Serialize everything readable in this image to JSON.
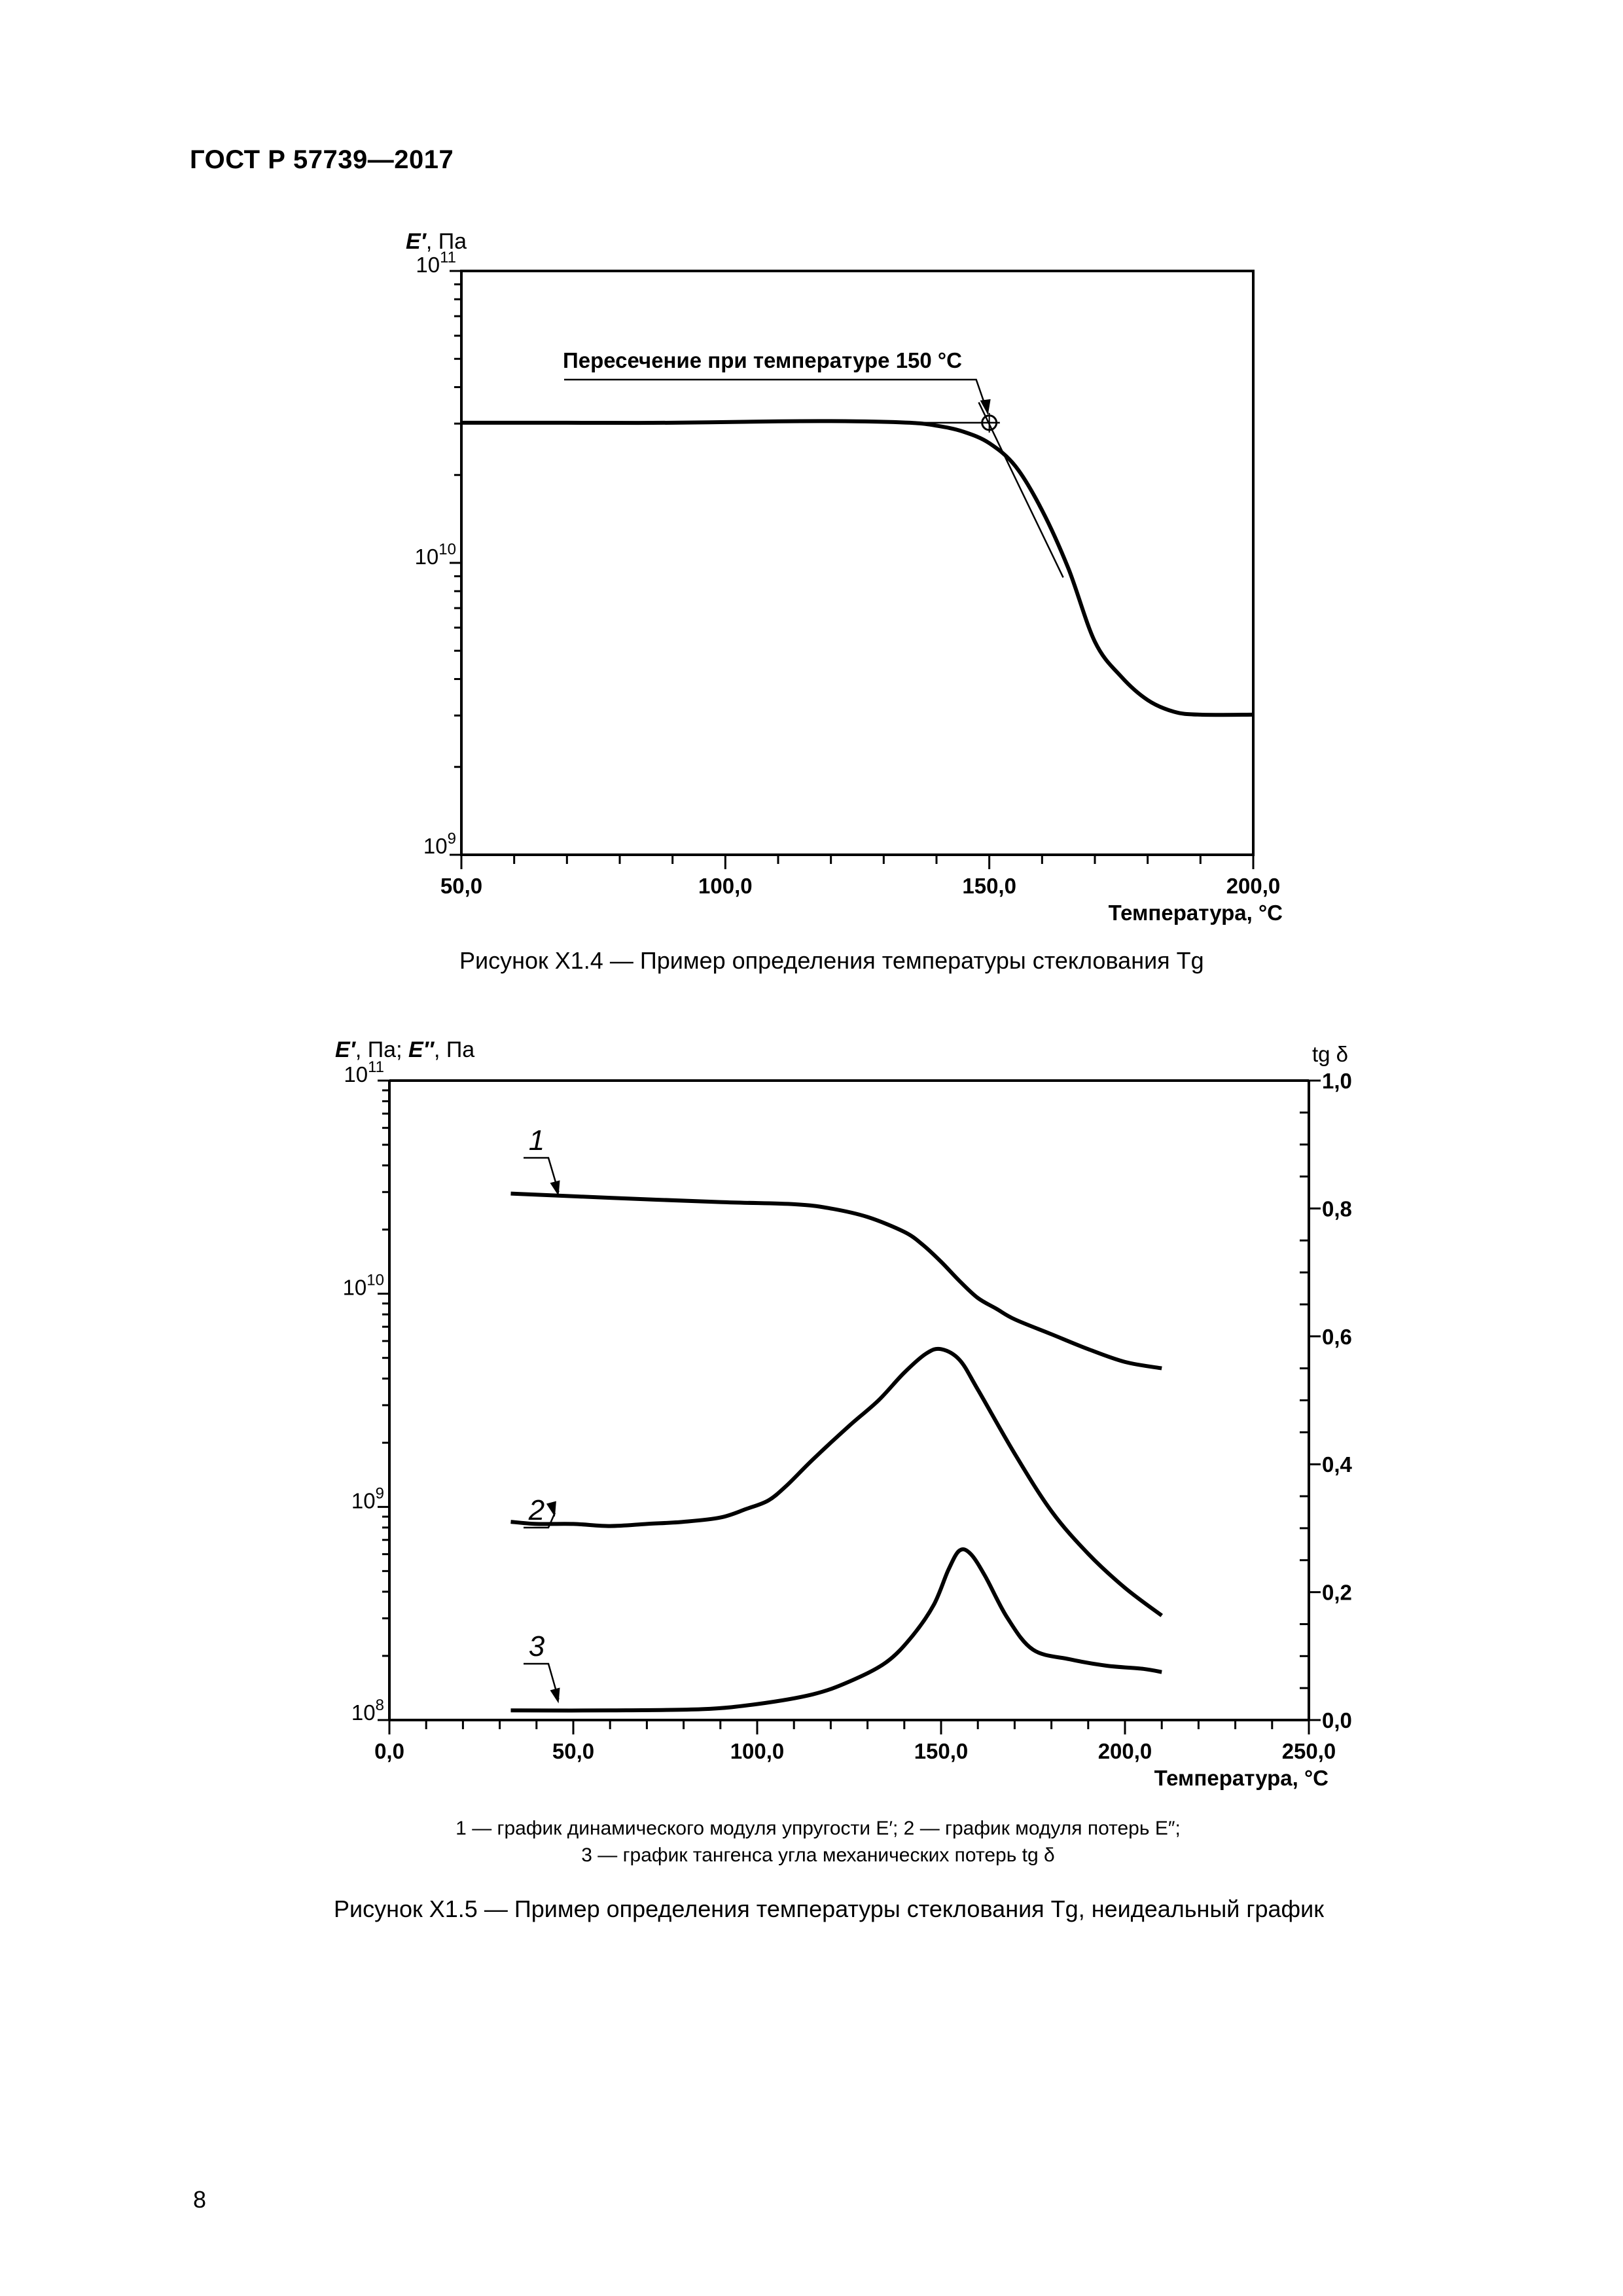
{
  "header": {
    "title": "ГОСТ Р 57739—2017"
  },
  "page_number": "8",
  "figure1": {
    "caption": "Рисунок Х1.4 — Пример определения температуры стеклования Tg"
  },
  "figure2": {
    "legend_line1": "1 — график динамического модуля упругости E′; 2 — график модуля потерь E″;",
    "legend_line2": "3 — график тангенса угла механических потерь tg δ",
    "caption": "Рисунок Х1.5 — Пример определения температуры стеклования Tg, неидеальный график"
  },
  "chart_data": [
    {
      "type": "line",
      "title": "",
      "ylabel": "E′, Па",
      "xlabel": "Температура, °C",
      "y_scale": "log",
      "xlim": [
        50,
        200
      ],
      "ylim_exp": [
        9,
        11
      ],
      "x_ticks": [
        "50,0",
        "100,0",
        "150,0",
        "200,0"
      ],
      "x_tick_values": [
        50,
        100,
        150,
        200
      ],
      "y_ticks": [
        {
          "base": "10",
          "exp": "9",
          "value_exp": 9
        },
        {
          "base": "10",
          "exp": "10",
          "value_exp": 10
        },
        {
          "base": "10",
          "exp": "11",
          "value_exp": 11
        }
      ],
      "annotation": {
        "text": "Пересечение при температуре 150 °C",
        "x": 150,
        "y_exp": 10.48
      },
      "series": [
        {
          "name": "E′",
          "x": [
            50,
            70,
            90,
            110,
            125,
            135,
            140,
            145,
            150,
            155,
            160,
            165,
            170,
            175,
            180,
            185,
            190,
            200
          ],
          "y_exp": [
            10.48,
            10.48,
            10.48,
            10.485,
            10.485,
            10.48,
            10.47,
            10.45,
            10.41,
            10.33,
            10.18,
            9.98,
            9.73,
            9.61,
            9.53,
            9.49,
            9.48,
            9.48
          ]
        }
      ],
      "tangents": [
        {
          "x": [
            130,
            152
          ],
          "y_exp": [
            10.48,
            10.48
          ]
        },
        {
          "x": [
            148,
            164
          ],
          "y_exp": [
            10.55,
            9.95
          ]
        }
      ]
    },
    {
      "type": "line",
      "title": "",
      "ylabel": "E′, Па; E″, Па",
      "y2label": "tg δ",
      "xlabel": "Температура, °C",
      "y_scale": "log",
      "xlim": [
        0,
        250
      ],
      "ylim_exp": [
        8,
        11
      ],
      "y2lim": [
        0,
        1
      ],
      "x_ticks": [
        "0,0",
        "50,0",
        "100,0",
        "150,0",
        "200,0",
        "250,0"
      ],
      "x_tick_values": [
        0,
        50,
        100,
        150,
        200,
        250
      ],
      "y_ticks": [
        {
          "base": "10",
          "exp": "8",
          "value_exp": 8
        },
        {
          "base": "10",
          "exp": "9",
          "value_exp": 9
        },
        {
          "base": "10",
          "exp": "10",
          "value_exp": 10
        },
        {
          "base": "10",
          "exp": "11",
          "value_exp": 11
        }
      ],
      "y2_ticks": [
        "0,0",
        "0,2",
        "0,4",
        "0,6",
        "0,8",
        "1,0"
      ],
      "y2_tick_values": [
        0,
        0.2,
        0.4,
        0.6,
        0.8,
        1.0
      ],
      "series": [
        {
          "name": "1",
          "axis": "left",
          "x": [
            33,
            60,
            90,
            110,
            120,
            130,
            140,
            145,
            150,
            155,
            160,
            165,
            170,
            180,
            190,
            200,
            210
          ],
          "y_exp": [
            10.47,
            10.45,
            10.43,
            10.42,
            10.4,
            10.36,
            10.29,
            10.23,
            10.15,
            10.06,
            9.98,
            9.93,
            9.88,
            9.81,
            9.74,
            9.68,
            9.65
          ]
        },
        {
          "name": "2",
          "axis": "left",
          "x": [
            33,
            40,
            50,
            60,
            70,
            80,
            90,
            97,
            103,
            108,
            115,
            125,
            133,
            140,
            146,
            150,
            155,
            160,
            170,
            180,
            190,
            200,
            210
          ],
          "y_exp": [
            8.93,
            8.92,
            8.92,
            8.91,
            8.92,
            8.93,
            8.95,
            8.99,
            9.03,
            9.1,
            9.22,
            9.38,
            9.5,
            9.63,
            9.72,
            9.74,
            9.69,
            9.55,
            9.25,
            8.98,
            8.78,
            8.62,
            8.49
          ]
        },
        {
          "name": "3",
          "axis": "right",
          "x": [
            33,
            60,
            85,
            100,
            115,
            125,
            135,
            142,
            148,
            152,
            155,
            158,
            162,
            168,
            175,
            185,
            195,
            205,
            210
          ],
          "y": [
            0.015,
            0.015,
            0.017,
            0.025,
            0.04,
            0.06,
            0.09,
            0.13,
            0.18,
            0.235,
            0.265,
            0.26,
            0.225,
            0.16,
            0.11,
            0.095,
            0.085,
            0.08,
            0.075
          ]
        }
      ]
    }
  ]
}
